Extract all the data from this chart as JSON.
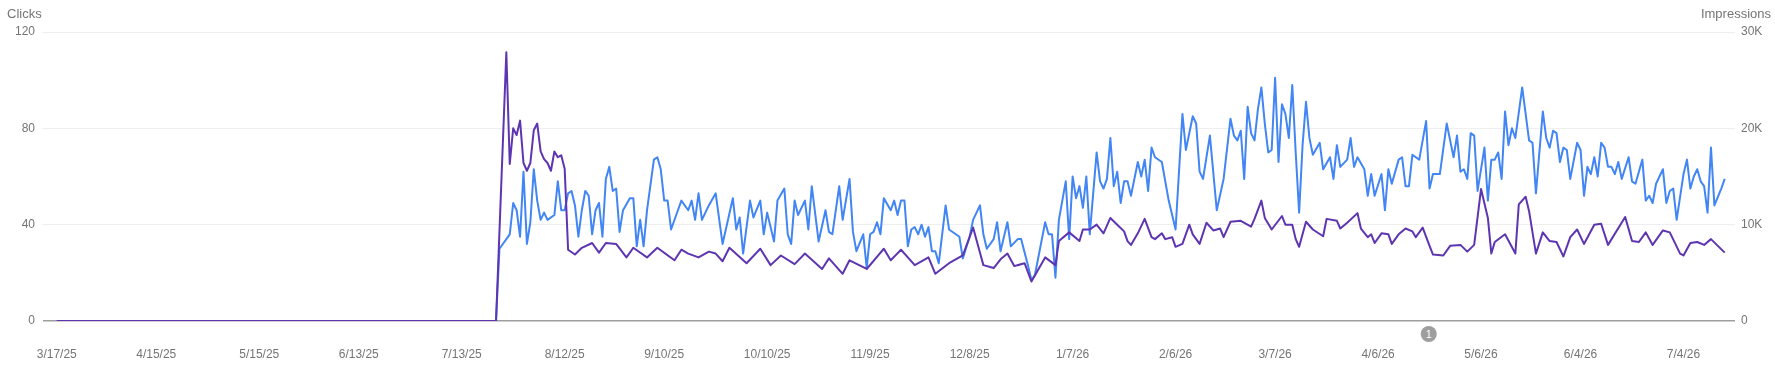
{
  "chart_data": {
    "type": "line",
    "ylabel": "Clicks",
    "y2label": "Impressions",
    "grid": "y",
    "xlim": [
      "2025-03-13",
      "2026-07-19"
    ],
    "xticks": [
      {
        "value": "2025-03-17",
        "label": "3/17/25"
      },
      {
        "value": "2025-04-15",
        "label": "4/15/25"
      },
      {
        "value": "2025-05-15",
        "label": "5/15/25"
      },
      {
        "value": "2025-06-13",
        "label": "6/13/25"
      },
      {
        "value": "2025-07-13",
        "label": "7/13/25"
      },
      {
        "value": "2025-08-12",
        "label": "8/12/25"
      },
      {
        "value": "2025-09-10",
        "label": "9/10/25"
      },
      {
        "value": "2025-10-10",
        "label": "10/10/25"
      },
      {
        "value": "2025-11-09",
        "label": "11/9/25"
      },
      {
        "value": "2025-12-08",
        "label": "12/8/25"
      },
      {
        "value": "2026-01-07",
        "label": "1/7/26"
      },
      {
        "value": "2026-02-06",
        "label": "2/6/26"
      },
      {
        "value": "2026-03-07",
        "label": "3/7/26"
      },
      {
        "value": "2026-04-06",
        "label": "4/6/26"
      },
      {
        "value": "2026-05-06",
        "label": "5/6/26"
      },
      {
        "value": "2026-06-04",
        "label": "6/4/26"
      },
      {
        "value": "2026-07-04",
        "label": "7/4/26"
      }
    ],
    "ylim": [
      0,
      120
    ],
    "yticks": [
      0,
      40,
      80,
      120
    ],
    "y2lim": [
      0,
      30000
    ],
    "y2ticks": [
      {
        "value": 0,
        "label": "0"
      },
      {
        "value": 10000,
        "label": "10K"
      },
      {
        "value": 20000,
        "label": "20K"
      },
      {
        "value": 30000,
        "label": "30K"
      }
    ],
    "annotations": [
      "1"
    ],
    "series": [
      {
        "color": "#5e35b1",
        "axis": "y2",
        "x": [
          "2025-03-17",
          "2025-07-23",
          "2025-07-26",
          "2025-07-27",
          "2025-07-28",
          "2025-07-29",
          "2025-07-30",
          "2025-07-31",
          "2025-08-01",
          "2025-08-02",
          "2025-08-03",
          "2025-08-04",
          "2025-08-05",
          "2025-08-06",
          "2025-08-07",
          "2025-08-08",
          "2025-08-09",
          "2025-08-10",
          "2025-08-11",
          "2025-08-12",
          "2025-08-13",
          "2025-08-15",
          "2025-08-17",
          "2025-08-20",
          "2025-08-22",
          "2025-08-24",
          "2025-08-27",
          "2025-08-30",
          "2025-09-01",
          "2025-09-05",
          "2025-09-08",
          "2025-09-13",
          "2025-09-15",
          "2025-09-17",
          "2025-09-20",
          "2025-09-23",
          "2025-09-25",
          "2025-09-27",
          "2025-09-29",
          "2025-10-04",
          "2025-10-08",
          "2025-10-11",
          "2025-10-14",
          "2025-10-18",
          "2025-10-21",
          "2025-10-26",
          "2025-10-28",
          "2025-11-01",
          "2025-11-03",
          "2025-11-08",
          "2025-11-13",
          "2025-11-15",
          "2025-11-18",
          "2025-11-22",
          "2025-11-26",
          "2025-11-28",
          "2025-12-02",
          "2025-12-06",
          "2025-12-09",
          "2025-12-12",
          "2025-12-15",
          "2025-12-17",
          "2025-12-19",
          "2025-12-21",
          "2025-12-24",
          "2025-12-26",
          "2025-12-30",
          "2026-01-02",
          "2026-01-03",
          "2026-01-06",
          "2026-01-09",
          "2026-01-10",
          "2026-01-12",
          "2026-01-14",
          "2026-01-16",
          "2026-01-18",
          "2026-01-20",
          "2026-01-22",
          "2026-01-23",
          "2026-01-24",
          "2026-01-26",
          "2026-01-28",
          "2026-01-30",
          "2026-01-31",
          "2026-02-02",
          "2026-02-03",
          "2026-02-05",
          "2026-02-06",
          "2026-02-08",
          "2026-02-10",
          "2026-02-11",
          "2026-02-13",
          "2026-02-15",
          "2026-02-17",
          "2026-02-19",
          "2026-02-20",
          "2026-02-22",
          "2026-02-25",
          "2026-02-28",
          "2026-03-01",
          "2026-03-03",
          "2026-03-04",
          "2026-03-06",
          "2026-03-09",
          "2026-03-10",
          "2026-03-12",
          "2026-03-13",
          "2026-03-14",
          "2026-03-16",
          "2026-03-18",
          "2026-03-21",
          "2026-03-22",
          "2026-03-25",
          "2026-03-26",
          "2026-03-28",
          "2026-03-31",
          "2026-04-01",
          "2026-04-03",
          "2026-04-04",
          "2026-04-05",
          "2026-04-07",
          "2026-04-09",
          "2026-04-10",
          "2026-04-12",
          "2026-04-14",
          "2026-04-16",
          "2026-04-17",
          "2026-04-19",
          "2026-04-21",
          "2026-04-22",
          "2026-04-25",
          "2026-04-27",
          "2026-04-30",
          "2026-05-02",
          "2026-05-04",
          "2026-05-06",
          "2026-05-08",
          "2026-05-09",
          "2026-05-10",
          "2026-05-13",
          "2026-05-16",
          "2026-05-17",
          "2026-05-19",
          "2026-05-20",
          "2026-05-22",
          "2026-05-24",
          "2026-05-26",
          "2026-05-28",
          "2026-05-30",
          "2026-06-01",
          "2026-06-03",
          "2026-06-05",
          "2026-06-08",
          "2026-06-10",
          "2026-06-12",
          "2026-06-17",
          "2026-06-19",
          "2026-06-21",
          "2026-06-23",
          "2026-06-25",
          "2026-06-28",
          "2026-06-30",
          "2026-07-03",
          "2026-07-04",
          "2026-07-06",
          "2026-07-08",
          "2026-07-10",
          "2026-07-12",
          "2026-07-14",
          "2026-07-16"
        ],
        "values": [
          0,
          0,
          27900,
          16300,
          20000,
          19300,
          20800,
          16400,
          15600,
          16400,
          19800,
          20500,
          17600,
          16800,
          16400,
          15600,
          17600,
          17000,
          17200,
          15800,
          7400,
          6900,
          7600,
          8100,
          7100,
          8100,
          8000,
          6600,
          7600,
          6600,
          7600,
          6300,
          7400,
          7000,
          6600,
          7200,
          7000,
          6200,
          7600,
          6000,
          7500,
          5800,
          6800,
          5900,
          7000,
          5400,
          6500,
          4900,
          6300,
          5400,
          7500,
          6300,
          7400,
          5800,
          6600,
          4900,
          6000,
          6800,
          9700,
          5800,
          5500,
          6400,
          7000,
          5700,
          6000,
          4100,
          6600,
          5800,
          8300,
          9200,
          8300,
          9500,
          9500,
          10000,
          9100,
          10700,
          10000,
          9300,
          8300,
          7900,
          9100,
          10600,
          8700,
          8500,
          9100,
          8500,
          8700,
          7700,
          8000,
          10000,
          9000,
          8000,
          10200,
          9400,
          9600,
          8700,
          10300,
          10400,
          9800,
          10600,
          12500,
          10700,
          9500,
          10900,
          10000,
          10000,
          8500,
          7700,
          10300,
          9500,
          8800,
          10600,
          10400,
          9600,
          10200,
          11200,
          9600,
          8700,
          9000,
          8100,
          9100,
          9000,
          8000,
          9000,
          9600,
          9300,
          8700,
          9700,
          7800,
          6900,
          6800,
          7800,
          7900,
          7200,
          7900,
          13700,
          10700,
          7000,
          8200,
          9000,
          7000,
          12100,
          12900,
          11400,
          7000,
          9200,
          8300,
          8200,
          6700,
          8700,
          9500,
          8000,
          10000,
          10100,
          7900,
          10800,
          8300,
          8200,
          9200,
          7900,
          9400,
          9200,
          7000,
          6800,
          8100,
          8200,
          7900,
          8500,
          7800,
          7100
        ]
      },
      {
        "color": "#4285f4",
        "x": [
          "2025-03-17",
          "2025-07-23",
          "2025-07-24",
          "2025-07-27",
          "2025-07-28",
          "2025-07-29",
          "2025-07-30",
          "2025-07-31",
          "2025-08-01",
          "2025-08-02",
          "2025-08-03",
          "2025-08-04",
          "2025-08-05",
          "2025-08-06",
          "2025-08-07",
          "2025-08-09",
          "2025-08-10",
          "2025-08-11",
          "2025-08-12",
          "2025-08-13",
          "2025-08-14",
          "2025-08-15",
          "2025-08-16",
          "2025-08-17",
          "2025-08-18",
          "2025-08-19",
          "2025-08-20",
          "2025-08-21",
          "2025-08-22",
          "2025-08-23",
          "2025-08-24",
          "2025-08-25",
          "2025-08-26",
          "2025-08-27",
          "2025-08-28",
          "2025-08-29",
          "2025-08-31",
          "2025-09-01",
          "2025-09-02",
          "2025-09-03",
          "2025-09-04",
          "2025-09-05",
          "2025-09-07",
          "2025-09-08",
          "2025-09-09",
          "2025-09-10",
          "2025-09-11",
          "2025-09-12",
          "2025-09-14",
          "2025-09-15",
          "2025-09-17",
          "2025-09-18",
          "2025-09-19",
          "2025-09-20",
          "2025-09-21",
          "2025-09-23",
          "2025-09-25",
          "2025-09-27",
          "2025-09-30",
          "2025-10-01",
          "2025-10-02",
          "2025-10-03",
          "2025-10-05",
          "2025-10-06",
          "2025-10-08",
          "2025-10-09",
          "2025-10-10",
          "2025-10-12",
          "2025-10-13",
          "2025-10-15",
          "2025-10-16",
          "2025-10-17",
          "2025-10-18",
          "2025-10-19",
          "2025-10-21",
          "2025-10-22",
          "2025-10-23",
          "2025-10-25",
          "2025-10-27",
          "2025-10-28",
          "2025-10-29",
          "2025-10-31",
          "2025-11-01",
          "2025-11-03",
          "2025-11-04",
          "2025-11-05",
          "2025-11-07",
          "2025-11-08",
          "2025-11-09",
          "2025-11-10",
          "2025-11-11",
          "2025-11-12",
          "2025-11-13",
          "2025-11-15",
          "2025-11-16",
          "2025-11-17",
          "2025-11-18",
          "2025-11-19",
          "2025-11-20",
          "2025-11-21",
          "2025-11-22",
          "2025-11-23",
          "2025-11-24",
          "2025-11-25",
          "2025-11-26",
          "2025-11-27",
          "2025-11-28",
          "2025-11-29",
          "2025-12-01",
          "2025-12-02",
          "2025-12-05",
          "2025-12-06",
          "2025-12-08",
          "2025-12-09",
          "2025-12-11",
          "2025-12-12",
          "2025-12-13",
          "2025-12-15",
          "2025-12-16",
          "2025-12-17",
          "2025-12-19",
          "2025-12-20",
          "2025-12-22",
          "2025-12-23",
          "2025-12-25",
          "2025-12-26",
          "2025-12-27",
          "2025-12-30",
          "2025-12-31",
          "2026-01-01",
          "2026-01-02",
          "2026-01-03",
          "2026-01-04",
          "2026-01-05",
          "2026-01-06",
          "2026-01-07",
          "2026-01-08",
          "2026-01-09",
          "2026-01-10",
          "2026-01-11",
          "2026-01-12",
          "2026-01-14",
          "2026-01-15",
          "2026-01-16",
          "2026-01-17",
          "2026-01-18",
          "2026-01-19",
          "2026-01-20",
          "2026-01-21",
          "2026-01-22",
          "2026-01-23",
          "2026-01-24",
          "2026-01-26",
          "2026-01-27",
          "2026-01-28",
          "2026-01-29",
          "2026-01-30",
          "2026-01-31",
          "2026-02-02",
          "2026-02-04",
          "2026-02-06",
          "2026-02-08",
          "2026-02-09",
          "2026-02-11",
          "2026-02-12",
          "2026-02-13",
          "2026-02-14",
          "2026-02-16",
          "2026-02-18",
          "2026-02-20",
          "2026-02-22",
          "2026-02-23",
          "2026-02-24",
          "2026-02-25",
          "2026-02-26",
          "2026-02-27",
          "2026-02-28",
          "2026-03-01",
          "2026-03-02",
          "2026-03-03",
          "2026-03-04",
          "2026-03-05",
          "2026-03-06",
          "2026-03-07",
          "2026-03-08",
          "2026-03-09",
          "2026-03-10",
          "2026-03-11",
          "2026-03-12",
          "2026-03-13",
          "2026-03-14",
          "2026-03-15",
          "2026-03-16",
          "2026-03-17",
          "2026-03-18",
          "2026-03-20",
          "2026-03-21",
          "2026-03-23",
          "2026-03-24",
          "2026-03-25",
          "2026-03-26",
          "2026-03-28",
          "2026-03-29",
          "2026-03-30",
          "2026-03-31",
          "2026-04-02",
          "2026-04-03",
          "2026-04-04",
          "2026-04-05",
          "2026-04-07",
          "2026-04-08",
          "2026-04-09",
          "2026-04-10",
          "2026-04-12",
          "2026-04-13",
          "2026-04-14",
          "2026-04-15",
          "2026-04-16",
          "2026-04-17",
          "2026-04-18",
          "2026-04-20",
          "2026-04-21",
          "2026-04-22",
          "2026-04-24",
          "2026-04-26",
          "2026-04-28",
          "2026-04-29",
          "2026-04-30",
          "2026-05-01",
          "2026-05-02",
          "2026-05-03",
          "2026-05-04",
          "2026-05-05",
          "2026-05-07",
          "2026-05-08",
          "2026-05-09",
          "2026-05-10",
          "2026-05-11",
          "2026-05-12",
          "2026-05-13",
          "2026-05-14",
          "2026-05-15",
          "2026-05-16",
          "2026-05-18",
          "2026-05-20",
          "2026-05-21",
          "2026-05-22",
          "2026-05-24",
          "2026-05-25",
          "2026-05-26",
          "2026-05-27",
          "2026-05-28",
          "2026-05-29",
          "2026-05-30",
          "2026-05-31",
          "2026-06-01",
          "2026-06-03",
          "2026-06-04",
          "2026-06-05",
          "2026-06-06",
          "2026-06-07",
          "2026-06-08",
          "2026-06-09",
          "2026-06-10",
          "2026-06-11",
          "2026-06-12",
          "2026-06-13",
          "2026-06-14",
          "2026-06-15",
          "2026-06-16",
          "2026-06-18",
          "2026-06-19",
          "2026-06-20",
          "2026-06-22",
          "2026-06-23",
          "2026-06-24",
          "2026-06-25",
          "2026-06-26",
          "2026-06-28",
          "2026-06-29",
          "2026-06-30",
          "2026-07-01",
          "2026-07-02",
          "2026-07-04",
          "2026-07-05",
          "2026-07-06",
          "2026-07-07",
          "2026-07-08",
          "2026-07-09",
          "2026-07-10",
          "2026-07-11",
          "2026-07-12",
          "2026-07-13",
          "2026-07-15",
          "2026-07-16"
        ],
        "values": [
          0,
          0,
          30,
          36,
          49,
          46,
          35,
          62,
          32,
          41,
          63,
          50,
          42,
          45,
          42,
          44,
          58,
          46,
          46,
          53,
          54,
          48,
          35,
          46,
          54,
          52,
          36,
          46,
          49,
          35,
          59,
          64,
          54,
          55,
          37,
          46,
          51,
          51,
          31,
          42,
          31,
          46,
          67,
          68,
          63,
          50,
          50,
          38,
          46,
          50,
          46,
          50,
          42,
          53,
          42,
          48,
          53,
          32,
          51,
          38,
          43,
          28,
          50,
          43,
          50,
          36,
          45,
          33,
          50,
          55,
          36,
          32,
          50,
          44,
          50,
          38,
          56,
          33,
          46,
          37,
          36,
          56,
          42,
          59,
          37,
          29,
          36,
          22,
          36,
          37,
          41,
          36,
          51,
          46,
          50,
          44,
          50,
          50,
          31,
          38,
          39,
          36,
          40,
          35,
          39,
          29,
          29,
          24,
          48,
          38,
          35,
          26,
          35,
          42,
          48,
          36,
          30,
          34,
          41,
          29,
          41,
          31,
          34,
          34,
          23,
          17,
          19,
          41,
          36,
          36,
          18,
          42,
          50,
          58,
          34,
          60,
          51,
          56,
          47,
          60,
          36,
          70,
          58,
          55,
          59,
          76,
          56,
          62,
          49,
          58,
          58,
          52,
          66,
          60,
          67,
          54,
          72,
          68,
          66,
          50,
          38,
          86,
          71,
          85,
          82,
          62,
          59,
          77,
          46,
          59,
          84,
          77,
          75,
          79,
          59,
          89,
          78,
          75,
          88,
          97,
          82,
          70,
          71,
          101,
          66,
          90,
          86,
          76,
          98,
          70,
          45,
          73,
          91,
          76,
          69,
          74,
          63,
          68,
          59,
          73,
          64,
          67,
          76,
          64,
          68,
          63,
          52,
          61,
          52,
          61,
          46,
          63,
          57,
          67,
          68,
          56,
          56,
          69,
          68,
          67,
          83,
          55,
          61,
          61,
          82,
          68,
          77,
          62,
          63,
          59,
          78,
          77,
          54,
          72,
          50,
          67,
          67,
          70,
          59,
          87,
          73,
          80,
          76,
          97,
          75,
          74,
          53,
          87,
          76,
          72,
          79,
          78,
          66,
          72,
          71,
          59,
          74,
          71,
          52,
          64,
          61,
          68,
          60,
          74,
          72,
          64,
          64,
          61,
          66,
          59,
          68,
          58,
          57,
          67,
          50,
          52,
          49,
          57,
          63,
          49,
          54,
          55,
          42,
          61,
          67,
          55,
          60,
          63,
          58,
          56,
          45,
          72,
          48,
          55,
          59
        ]
      }
    ]
  }
}
